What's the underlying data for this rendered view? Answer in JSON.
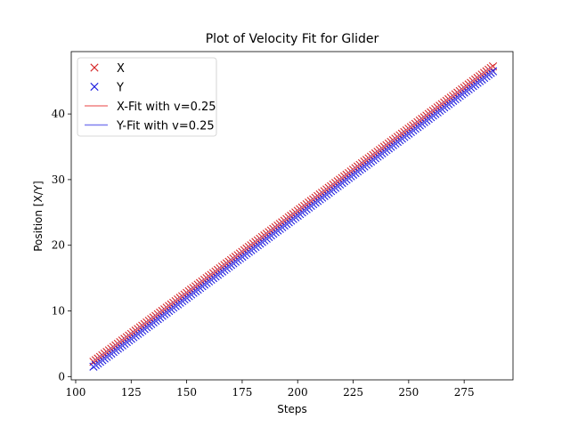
{
  "chart_data": {
    "type": "scatter",
    "title": "Plot of Velocity Fit for Glider",
    "xlabel": "Steps",
    "ylabel": "Position [X/Y]",
    "xlim": [
      98,
      297
    ],
    "ylim": [
      -0.5,
      49.5
    ],
    "xticks": [
      100,
      125,
      150,
      175,
      200,
      225,
      250,
      275
    ],
    "yticks": [
      0,
      10,
      20,
      30,
      40
    ],
    "grid": false,
    "legend_position": "upper left",
    "x_range": [
      108,
      288
    ],
    "series": [
      {
        "name": "X",
        "kind": "marker",
        "marker": "x",
        "color": "#d62728",
        "x": [
          108,
          288
        ],
        "y": [
          2.25,
          47.25
        ]
      },
      {
        "name": "Y",
        "kind": "marker",
        "marker": "x",
        "color": "#1f1fe0",
        "x": [
          108,
          288
        ],
        "y": [
          1.5,
          46.5
        ]
      },
      {
        "name": "X-Fit with v=0.25",
        "kind": "line",
        "color": "#f08080",
        "slope": 0.25,
        "intercept": -24.75
      },
      {
        "name": "Y-Fit with v=0.25",
        "kind": "line",
        "color": "#8080f0",
        "slope": 0.25,
        "intercept": -25.5
      }
    ]
  }
}
